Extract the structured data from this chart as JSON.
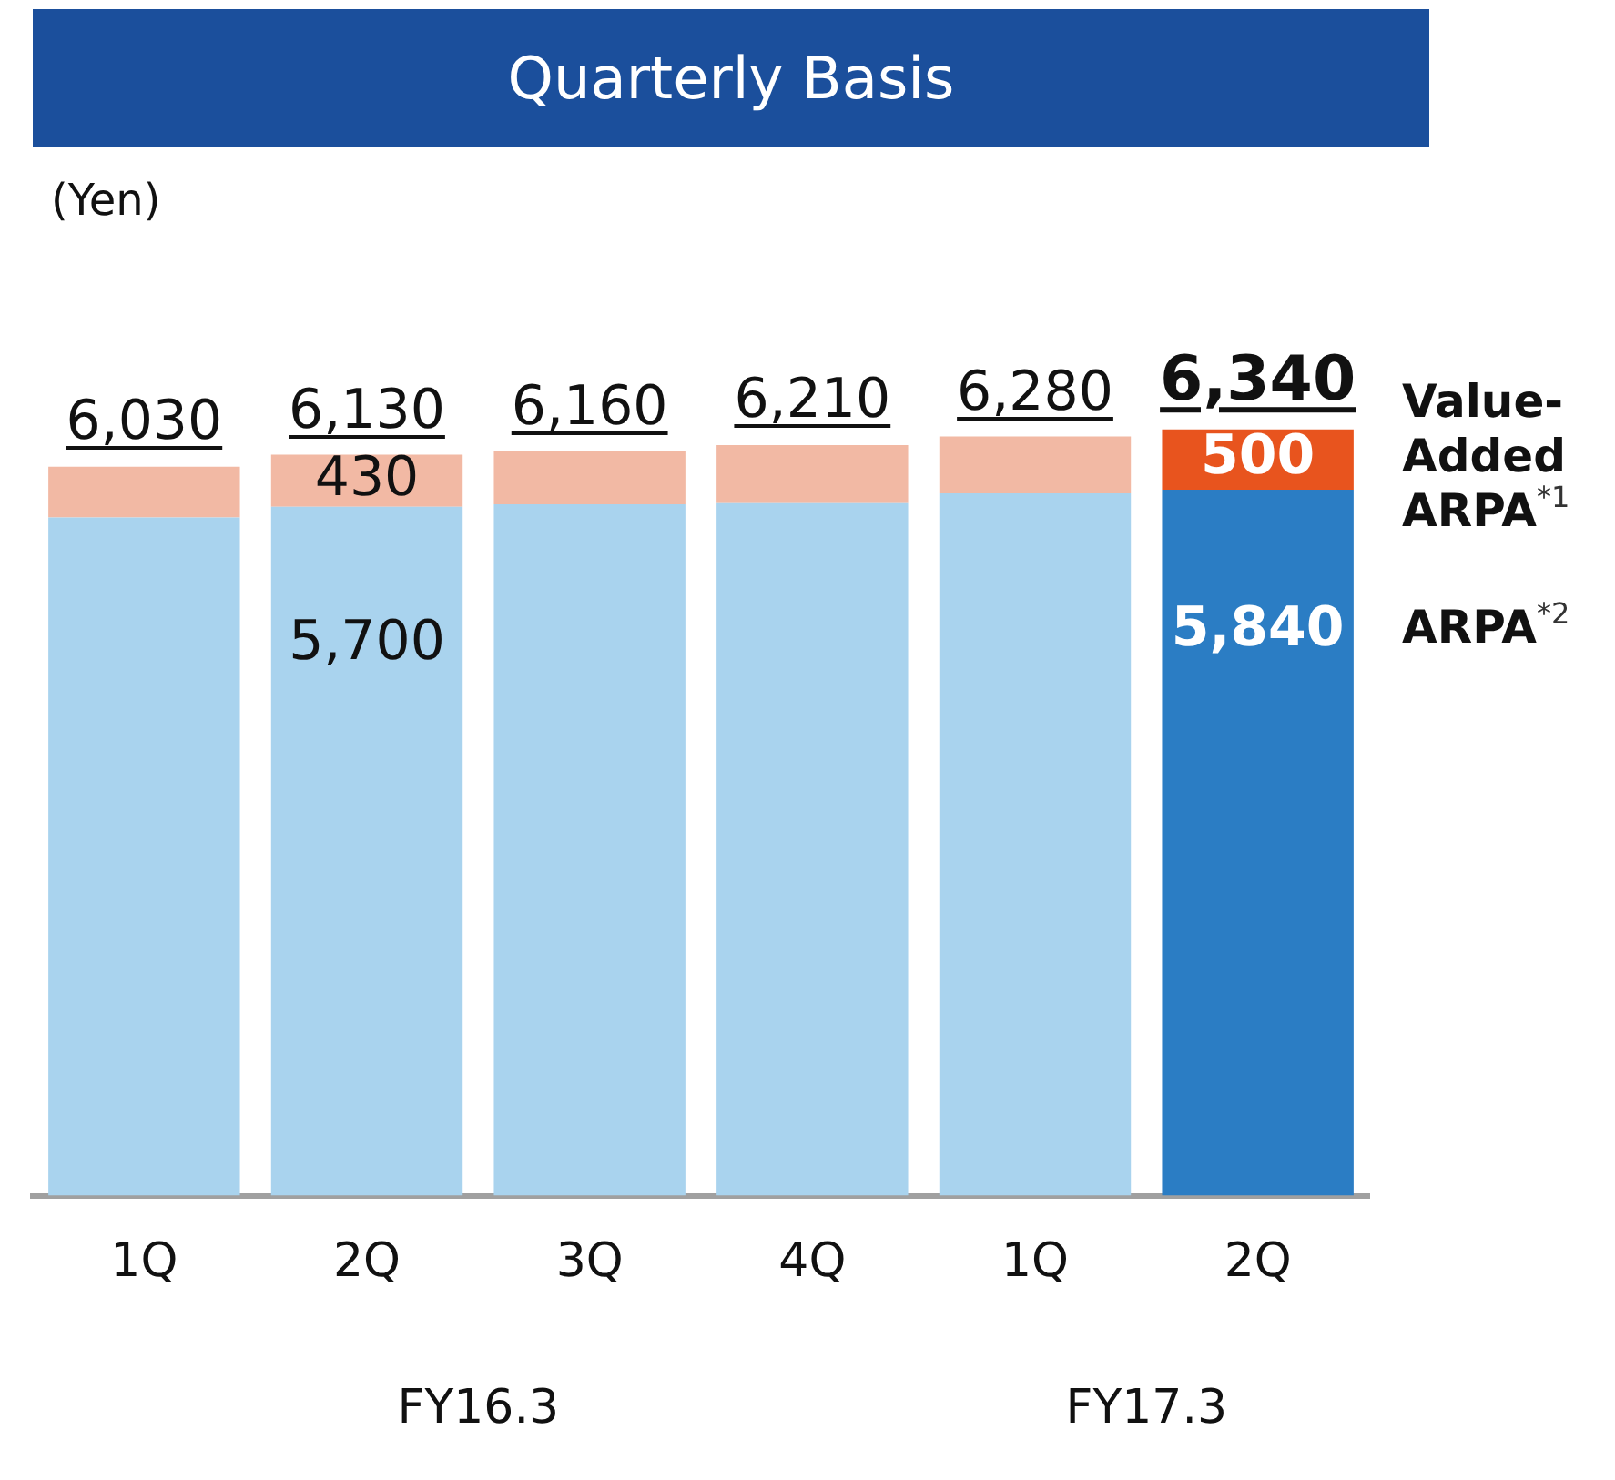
{
  "chart_data": {
    "type": "bar",
    "title": "Quarterly Basis",
    "ylabel": "(Yen)",
    "stacked": true,
    "categories": [
      "1Q",
      "2Q",
      "3Q",
      "4Q",
      "1Q",
      "2Q"
    ],
    "series": [
      {
        "name": "ARPA$^{*2}$",
        "colors": [
          "#a9d3ee",
          "#a9d3ee",
          "#a9d3ee",
          "#a9d3ee",
          "#a9d3ee",
          "#2b7dc4"
        ],
        "values": [
          5610,
          5700,
          5720,
          5730,
          5810,
          5840
        ],
        "value_labels": [
          null,
          "5,700",
          null,
          null,
          null,
          "5,840"
        ]
      },
      {
        "name": "Value-Added ARPA$^{*1}$",
        "colors": [
          "#f2b9a4",
          "#f2b9a4",
          "#f2b9a4",
          "#f2b9a4",
          "#f2b9a4",
          "#e8541e"
        ],
        "values": [
          420,
          430,
          440,
          480,
          470,
          500
        ],
        "value_labels": [
          null,
          "430",
          null,
          null,
          null,
          "500"
        ]
      }
    ],
    "totals": [
      "6,030",
      "6,130",
      "6,160",
      "6,210",
      "6,280",
      "6,340"
    ],
    "annotations": [
      "FY16.3",
      "FY17.3"
    ],
    "grid": false,
    "legend": false
  }
}
